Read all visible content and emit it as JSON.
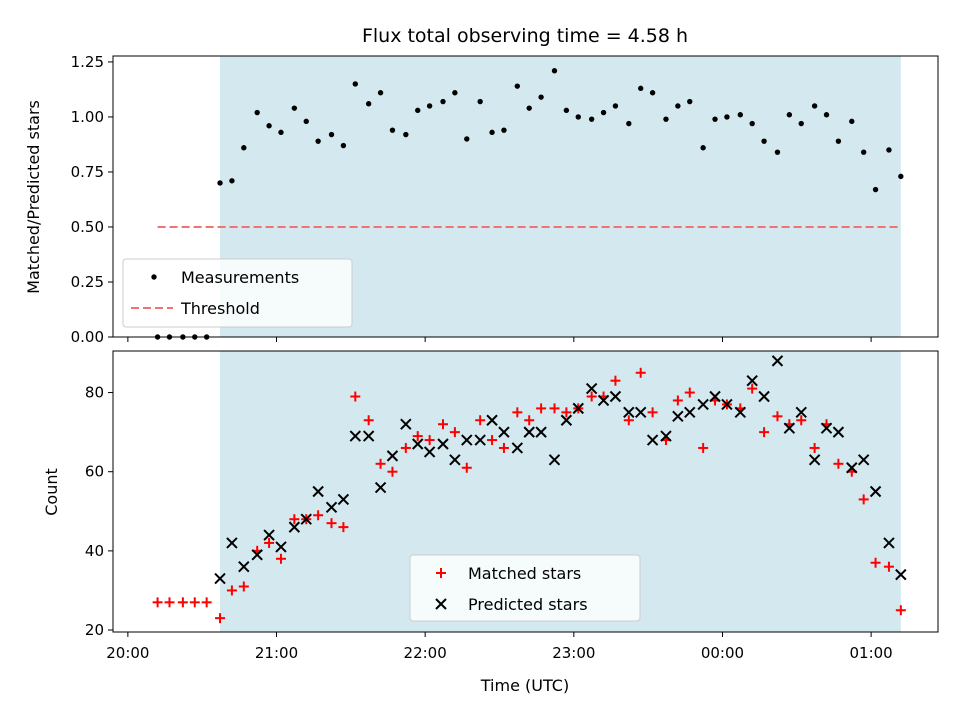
{
  "chart_data": [
    {
      "type": "scatter",
      "title": "Flux total observing time = 4.58 h",
      "ylabel": "Matched/Predicted stars",
      "xlabel": "",
      "ylim": [
        0,
        1.25
      ],
      "yticks": [
        "0.00",
        "0.25",
        "0.50",
        "0.75",
        "1.00",
        "1.25"
      ],
      "xlim_hours": [
        19.9,
        25.45
      ],
      "shaded_span_hours": [
        20.62,
        25.2
      ],
      "shade_color": "#d3e9ef",
      "legend_position": "lower left",
      "series": [
        {
          "name": "Measurements",
          "marker": "dot",
          "color": "#000000",
          "x_hours": [
            20.2,
            20.28,
            20.37,
            20.45,
            20.53,
            20.62,
            20.7,
            20.78,
            20.87,
            20.95,
            21.03,
            21.12,
            21.2,
            21.28,
            21.37,
            21.45,
            21.53,
            21.62,
            21.7,
            21.78,
            21.87,
            21.95,
            22.03,
            22.12,
            22.2,
            22.28,
            22.37,
            22.45,
            22.53,
            22.62,
            22.7,
            22.78,
            22.87,
            22.95,
            23.03,
            23.12,
            23.2,
            23.28,
            23.37,
            23.45,
            23.53,
            23.62,
            23.7,
            23.78,
            23.87,
            23.95,
            24.03,
            24.12,
            24.2,
            24.28,
            24.37,
            24.45,
            24.53,
            24.62,
            24.7,
            24.78,
            24.87,
            24.95,
            25.03,
            25.12,
            25.2
          ],
          "y": [
            0,
            0,
            0,
            0,
            0,
            0.7,
            0.71,
            0.86,
            1.02,
            0.96,
            0.93,
            1.04,
            0.98,
            0.89,
            0.92,
            0.87,
            1.15,
            1.06,
            1.11,
            0.94,
            0.92,
            1.03,
            1.05,
            1.07,
            1.11,
            0.9,
            1.07,
            0.93,
            0.94,
            1.14,
            1.04,
            1.09,
            1.21,
            1.03,
            1.0,
            0.99,
            1.02,
            1.05,
            0.97,
            1.13,
            1.11,
            0.99,
            1.05,
            1.07,
            0.86,
            0.99,
            1.0,
            1.01,
            0.97,
            0.89,
            0.84,
            1.01,
            0.97,
            1.05,
            1.01,
            0.89,
            0.98,
            0.84,
            0.67,
            0.85,
            0.73
          ]
        },
        {
          "name": "Threshold",
          "marker": "dashed-line",
          "color": "#f07373",
          "x_hours": [
            20.2,
            25.2
          ],
          "y": [
            0.5,
            0.5
          ]
        }
      ]
    },
    {
      "type": "scatter",
      "title": "",
      "xlabel": "Time (UTC)",
      "ylabel": "Count",
      "ylim": [
        20,
        90
      ],
      "yticks": [
        "20",
        "40",
        "60",
        "80"
      ],
      "xticks": [
        "20:00",
        "21:00",
        "22:00",
        "23:00",
        "00:00",
        "01:00"
      ],
      "xtick_hours": [
        20,
        21,
        22,
        23,
        24,
        25
      ],
      "xlim_hours": [
        19.9,
        25.45
      ],
      "shaded_span_hours": [
        20.62,
        25.2
      ],
      "shade_color": "#d3e9ef",
      "legend_position": "lower center",
      "series": [
        {
          "name": "Matched stars",
          "marker": "plus",
          "color": "#ff0000",
          "x_hours": [
            20.2,
            20.28,
            20.37,
            20.45,
            20.53,
            20.62,
            20.7,
            20.78,
            20.87,
            20.95,
            21.03,
            21.12,
            21.2,
            21.28,
            21.37,
            21.45,
            21.53,
            21.62,
            21.7,
            21.78,
            21.87,
            21.95,
            22.03,
            22.12,
            22.2,
            22.28,
            22.37,
            22.45,
            22.53,
            22.62,
            22.7,
            22.78,
            22.87,
            22.95,
            23.03,
            23.12,
            23.2,
            23.28,
            23.37,
            23.45,
            23.53,
            23.62,
            23.7,
            23.78,
            23.87,
            23.95,
            24.03,
            24.12,
            24.2,
            24.28,
            24.37,
            24.45,
            24.53,
            24.62,
            24.7,
            24.78,
            24.87,
            24.95,
            25.03,
            25.12,
            25.2
          ],
          "y": [
            27,
            27,
            27,
            27,
            27,
            23,
            30,
            31,
            40,
            42,
            38,
            48,
            48,
            49,
            47,
            46,
            79,
            73,
            62,
            60,
            66,
            69,
            68,
            72,
            70,
            61,
            73,
            68,
            66,
            75,
            73,
            76,
            76,
            75,
            76,
            79,
            79,
            83,
            73,
            85,
            75,
            68,
            78,
            80,
            66,
            78,
            77,
            76,
            81,
            70,
            74,
            72,
            73,
            66,
            72,
            62,
            60,
            53,
            37,
            36,
            25
          ]
        },
        {
          "name": "Predicted stars",
          "marker": "x",
          "color": "#000000",
          "x_hours": [
            20.62,
            20.7,
            20.78,
            20.87,
            20.95,
            21.03,
            21.12,
            21.2,
            21.28,
            21.37,
            21.45,
            21.53,
            21.62,
            21.7,
            21.78,
            21.87,
            21.95,
            22.03,
            22.12,
            22.2,
            22.28,
            22.37,
            22.45,
            22.53,
            22.62,
            22.7,
            22.78,
            22.87,
            22.95,
            23.03,
            23.12,
            23.2,
            23.28,
            23.37,
            23.45,
            23.53,
            23.62,
            23.7,
            23.78,
            23.87,
            23.95,
            24.03,
            24.12,
            24.2,
            24.28,
            24.37,
            24.45,
            24.53,
            24.62,
            24.7,
            24.78,
            24.87,
            24.95,
            25.03,
            25.12,
            25.2
          ],
          "y": [
            33,
            42,
            36,
            39,
            44,
            41,
            46,
            48,
            55,
            51,
            53,
            69,
            69,
            56,
            64,
            72,
            67,
            65,
            67,
            63,
            68,
            68,
            73,
            70,
            66,
            70,
            70,
            63,
            73,
            76,
            81,
            78,
            79,
            75,
            75,
            68,
            69,
            74,
            75,
            77,
            79,
            77,
            75,
            83,
            79,
            88,
            71,
            75,
            63,
            71,
            70,
            61,
            63,
            55,
            42,
            34
          ]
        }
      ]
    }
  ]
}
